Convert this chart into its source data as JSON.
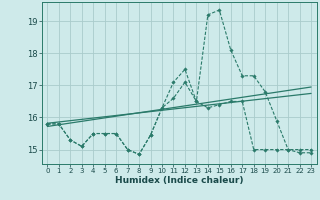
{
  "xlabel": "Humidex (Indice chaleur)",
  "background_color": "#ceeaea",
  "grid_color": "#aacccc",
  "line_color": "#2a7a6a",
  "xlim": [
    -0.5,
    23.5
  ],
  "ylim": [
    14.55,
    19.6
  ],
  "yticks": [
    15,
    16,
    17,
    18,
    19
  ],
  "xticks": [
    0,
    1,
    2,
    3,
    4,
    5,
    6,
    7,
    8,
    9,
    10,
    11,
    12,
    13,
    14,
    15,
    16,
    17,
    18,
    19,
    20,
    21,
    22,
    23
  ],
  "line1_x": [
    0,
    1,
    2,
    3,
    4,
    5,
    6,
    7,
    8,
    9,
    10,
    11,
    12,
    13,
    14,
    15,
    16,
    17,
    18,
    19,
    20,
    21,
    22,
    23
  ],
  "line1_y": [
    15.8,
    15.8,
    15.3,
    15.1,
    15.5,
    15.5,
    15.5,
    15.0,
    14.85,
    15.45,
    16.3,
    16.6,
    17.1,
    16.5,
    16.3,
    16.4,
    16.5,
    16.5,
    15.0,
    15.0,
    15.0,
    15.0,
    15.0,
    15.0
  ],
  "line2_x": [
    0,
    1,
    2,
    3,
    4,
    5,
    6,
    7,
    8,
    9,
    10,
    11,
    12,
    13,
    14,
    15,
    16,
    17,
    18,
    19,
    20,
    21,
    22,
    23
  ],
  "line2_y": [
    15.8,
    15.8,
    15.3,
    15.1,
    15.5,
    15.5,
    15.5,
    15.0,
    14.85,
    15.45,
    16.3,
    17.1,
    17.5,
    16.5,
    19.2,
    19.35,
    18.1,
    17.3,
    17.3,
    16.8,
    15.9,
    15.0,
    14.9,
    14.9
  ],
  "line3_x": [
    0,
    23
  ],
  "line3_y": [
    15.82,
    16.75
  ],
  "line4_x": [
    0,
    23
  ],
  "line4_y": [
    15.72,
    16.95
  ]
}
